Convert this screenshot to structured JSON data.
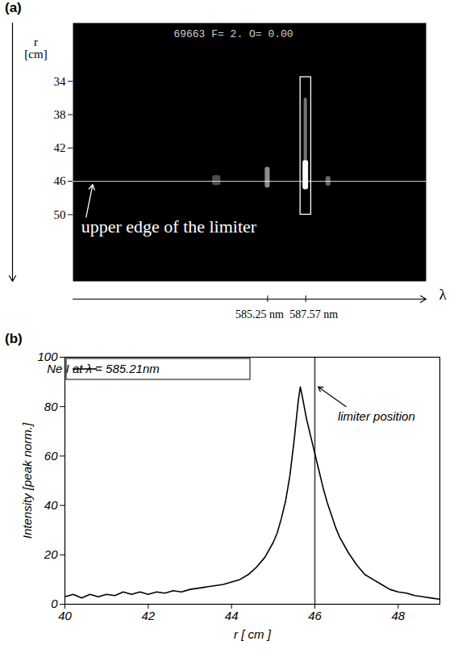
{
  "chart_data": [
    {
      "type": "spectral_image",
      "panel": "(a)",
      "header": "69663 F= 2. O= 0.00",
      "x_label": "λ",
      "y_label": "r [cm]",
      "xlim": [
        573.4,
        594.9
      ],
      "xticks": [
        {
          "value": 585.25,
          "label": "585.25 nm"
        },
        {
          "value": 587.57,
          "label": "587.57 nm"
        }
      ],
      "ylim": [
        27,
        58
      ],
      "yticks": [
        34,
        38,
        42,
        46,
        50
      ],
      "spots": [
        {
          "x1": 581.9,
          "x2": 582.4,
          "y1": 45.3,
          "y2": 46.5,
          "intensity": 0.3
        },
        {
          "x1": 585.1,
          "x2": 585.4,
          "y1": 44.3,
          "y2": 46.8,
          "intensity": 0.55
        },
        {
          "x1": 587.47,
          "x2": 587.67,
          "y1": 36,
          "y2": 44,
          "intensity": 0.45
        },
        {
          "x1": 587.4,
          "x2": 587.74,
          "y1": 43.5,
          "y2": 47,
          "intensity": 1
        },
        {
          "x1": 588.8,
          "x2": 589.1,
          "y1": 45.4,
          "y2": 46.6,
          "intensity": 0.4
        }
      ],
      "box": {
        "x1": 587.25,
        "x2": 587.9,
        "y1": 33.5,
        "y2": 50
      },
      "limiter": 46,
      "annotation": {
        "text": "upper edge of the limiter",
        "x": 573.9,
        "y": 50.6,
        "arrow_from": [
          574.2,
          50.3
        ],
        "arrow_to": [
          574.6,
          46.4
        ]
      }
    },
    {
      "type": "line",
      "panel": "(b)",
      "x_label": "r [ cm ]",
      "y_label": "Intensity [peak norm.]",
      "xlim": [
        40,
        49
      ],
      "xticks": [
        40,
        42,
        44,
        46,
        48
      ],
      "ylim": [
        0,
        100
      ],
      "yticks": [
        0,
        20,
        40,
        60,
        80,
        100
      ],
      "legend": "top-left",
      "x": [
        40.0,
        40.2,
        40.4,
        40.6,
        40.8,
        41.0,
        41.2,
        41.4,
        41.6,
        41.8,
        42.0,
        42.2,
        42.4,
        42.6,
        42.8,
        43.0,
        43.2,
        43.4,
        43.6,
        43.8,
        44.0,
        44.2,
        44.4,
        44.6,
        44.8,
        45.0,
        45.1,
        45.2,
        45.3,
        45.4,
        45.5,
        45.6,
        45.65,
        45.7,
        45.8,
        45.9,
        46.0,
        46.1,
        46.2,
        46.3,
        46.4,
        46.5,
        46.6,
        46.8,
        47.0,
        47.2,
        47.4,
        47.6,
        47.8,
        48.0,
        48.2,
        48.4,
        48.6,
        48.8,
        49.0
      ],
      "series": [
        {
          "name": "Ne I at λ = 585.21nm",
          "color": "#000000",
          "values": [
            3,
            4,
            2.5,
            4,
            3,
            4,
            3.5,
            5,
            4,
            5,
            4,
            5,
            4.5,
            5.5,
            5,
            6,
            6.5,
            7,
            7.5,
            8,
            9,
            10,
            12,
            15,
            19,
            25,
            29,
            35,
            42,
            52,
            66,
            82,
            88,
            84,
            75,
            68,
            61,
            54,
            47,
            41,
            36,
            31,
            27,
            21,
            16,
            12,
            10,
            8,
            6,
            5,
            4.5,
            3.5,
            3,
            2.5,
            2
          ]
        }
      ],
      "limiter": 46,
      "annotation": {
        "text": "limiter position",
        "x": 46.55,
        "y": 76,
        "arrow_from": [
          46.75,
          80
        ],
        "arrow_to": [
          46.08,
          88
        ]
      }
    }
  ]
}
